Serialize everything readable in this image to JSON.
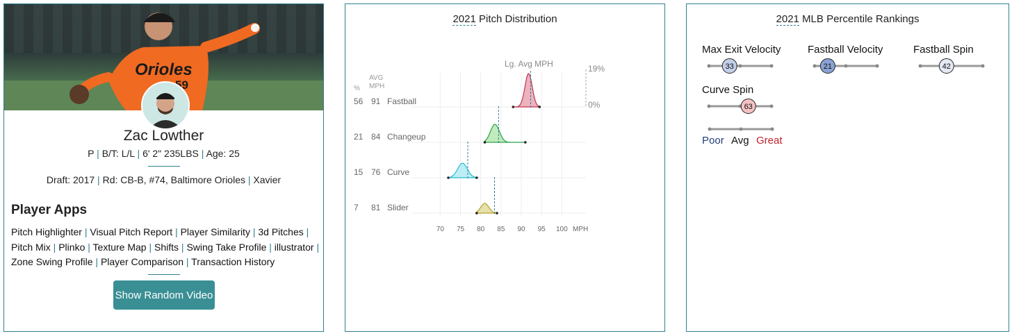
{
  "player": {
    "name": "Zac Lowther",
    "position": "P",
    "bt": "B/T: L/L",
    "height_weight": "6' 2\" 235LBS",
    "age": "Age: 25",
    "draft_year": "Draft: 2017",
    "draft_round": "Rd: CB-B, #74, Baltimore Orioles",
    "school": "Xavier",
    "jersey_number": "59",
    "jersey_text": "Orioles"
  },
  "apps": {
    "title": "Player Apps",
    "links": [
      "Pitch Highlighter",
      "Visual Pitch Report",
      "Player Similarity",
      "3d Pitches",
      "Pitch Mix",
      "Plinko",
      "Texture Map",
      "Shifts",
      "Swing Take Profile",
      "illustrator",
      "Zone Swing Profile",
      "Player Comparison",
      "Transaction History"
    ],
    "button": "Show Random Video"
  },
  "pitch_dist": {
    "year": "2021",
    "title_rest": " Pitch Distribution",
    "col_pct": "%",
    "col_avg": "AVG",
    "col_mph": "MPH",
    "lg_avg_label": "Lg. Avg MPH",
    "scale_max": "19%",
    "scale_min": "0%",
    "x_unit": "MPH",
    "colors": {
      "Fastball": "#e0a0ac",
      "Changeup": "#a8e0a4",
      "Curve": "#a8e4ee",
      "Slider": "#d8cf96"
    }
  },
  "chart_data": {
    "type": "area",
    "title": "2021 Pitch Distribution",
    "xlabel": "MPH",
    "xlim": [
      66,
      102
    ],
    "xticks": [
      70,
      75,
      80,
      85,
      90,
      95,
      100
    ],
    "series": [
      {
        "name": "Fastball",
        "pct": 56,
        "avg_mph": 91,
        "lg_avg_mph": 92.3,
        "min": 88,
        "max": 94.5,
        "peak": 91.8,
        "spread": 0.9,
        "stroke": "#c0334d",
        "fill": "#e9a6b4"
      },
      {
        "name": "Changeup",
        "pct": 21,
        "avg_mph": 84,
        "lg_avg_mph": 84.4,
        "min": 81,
        "max": 91,
        "peak": 83.5,
        "spread": 1.1,
        "stroke": "#2aa34a",
        "fill": "#b6e6b2"
      },
      {
        "name": "Curve",
        "pct": 15,
        "avg_mph": 76,
        "lg_avg_mph": 76.8,
        "min": 72,
        "max": 79,
        "peak": 75.5,
        "spread": 1.2,
        "stroke": "#27b9cf",
        "fill": "#b2ebf3"
      },
      {
        "name": "Slider",
        "pct": 7,
        "avg_mph": 81,
        "lg_avg_mph": 83.4,
        "min": 79,
        "max": 84,
        "peak": 81,
        "spread": 1.0,
        "stroke": "#b5a227",
        "fill": "#e2db9e"
      }
    ]
  },
  "percentiles": {
    "year": "2021",
    "title_rest": " MLB Percentile Rankings",
    "metrics": [
      {
        "label": "Max Exit Velocity",
        "value": 33,
        "color": "#c3cfe8"
      },
      {
        "label": "Fastball Velocity",
        "value": 21,
        "color": "#8aa2d4"
      },
      {
        "label": "Fastball Spin",
        "value": 42,
        "color": "#e4e8f2"
      },
      {
        "label": "Curve Spin",
        "value": 63,
        "color": "#f4c2c2"
      }
    ],
    "legend": {
      "poor": "Poor",
      "avg": "Avg",
      "great": "Great",
      "poor_color": "#1f3e7a",
      "great_color": "#c0212a"
    }
  }
}
